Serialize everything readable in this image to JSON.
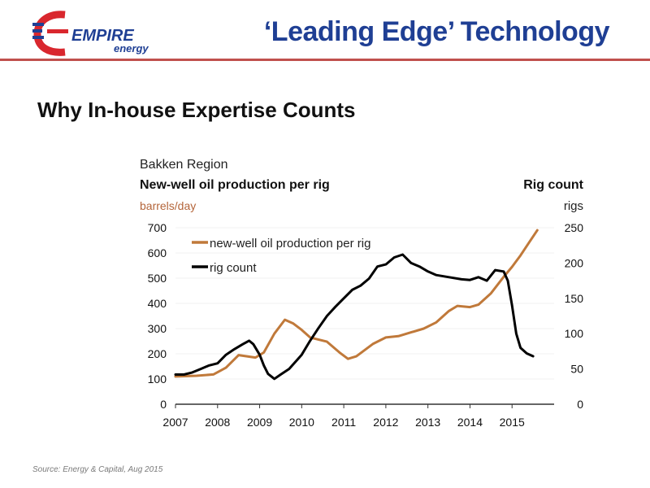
{
  "slide": {
    "title": "‘Leading Edge’ Technology",
    "subtitle": "Why In-house Expertise Counts",
    "source": "Source: Energy & Capital, Aug 2015"
  },
  "logo": {
    "word1": "EMPIRE",
    "word2": "energy",
    "color_blue": "#1f3f94",
    "color_red": "#d9272e"
  },
  "colors": {
    "rule": "#c0504d",
    "production": "#c0793a",
    "rigs": "#000000",
    "left_axis_labels": "#b4653a"
  },
  "chart_data": {
    "type": "line",
    "region": "Bakken Region",
    "title": "New-well oil production per rig",
    "left_unit": "barrels/day",
    "right_title": "Rig count",
    "right_unit": "rigs",
    "x_ticks": [
      "2007",
      "2008",
      "2009",
      "2010",
      "2011",
      "2012",
      "2013",
      "2014",
      "2015"
    ],
    "xlim": [
      2007,
      2016
    ],
    "ylim_left": [
      0,
      700
    ],
    "ylim_right": [
      0,
      250
    ],
    "left_ticks": [
      "0",
      "100",
      "200",
      "300",
      "400",
      "500",
      "600",
      "700"
    ],
    "right_ticks": [
      "0",
      "50",
      "100",
      "150",
      "200",
      "250"
    ],
    "legend": {
      "placement": "top-left"
    },
    "series": [
      {
        "name": "new-well oil production per rig",
        "axis": "left",
        "x": [
          2007.0,
          2007.5,
          2007.9,
          2008.2,
          2008.5,
          2008.9,
          2009.1,
          2009.35,
          2009.6,
          2009.8,
          2010.0,
          2010.2,
          2010.6,
          2010.9,
          2011.1,
          2011.3,
          2011.7,
          2012.0,
          2012.3,
          2012.6,
          2012.9,
          2013.2,
          2013.5,
          2013.7,
          2014.0,
          2014.2,
          2014.5,
          2014.8,
          2015.0,
          2015.2,
          2015.4,
          2015.6
        ],
        "y": [
          110,
          113,
          118,
          145,
          195,
          185,
          205,
          280,
          335,
          320,
          295,
          265,
          248,
          205,
          180,
          190,
          240,
          265,
          270,
          285,
          300,
          325,
          370,
          390,
          385,
          395,
          440,
          505,
          545,
          590,
          640,
          690
        ]
      },
      {
        "name": "rig count",
        "axis": "right",
        "x": [
          2007.0,
          2007.2,
          2007.4,
          2007.6,
          2007.8,
          2008.0,
          2008.2,
          2008.4,
          2008.6,
          2008.75,
          2008.85,
          2009.0,
          2009.1,
          2009.2,
          2009.35,
          2009.5,
          2009.7,
          2010.0,
          2010.2,
          2010.4,
          2010.6,
          2010.8,
          2011.0,
          2011.2,
          2011.4,
          2011.6,
          2011.8,
          2012.0,
          2012.2,
          2012.4,
          2012.6,
          2012.8,
          2013.0,
          2013.2,
          2013.5,
          2013.8,
          2014.0,
          2014.2,
          2014.4,
          2014.6,
          2014.8,
          2014.9,
          2015.0,
          2015.1,
          2015.2,
          2015.35,
          2015.5
        ],
        "y": [
          42,
          42,
          45,
          50,
          55,
          58,
          70,
          78,
          85,
          90,
          85,
          70,
          55,
          43,
          36,
          42,
          50,
          70,
          90,
          108,
          125,
          138,
          150,
          162,
          168,
          178,
          195,
          198,
          208,
          212,
          200,
          195,
          188,
          183,
          180,
          177,
          176,
          180,
          175,
          190,
          188,
          175,
          140,
          100,
          80,
          72,
          68
        ]
      }
    ]
  }
}
